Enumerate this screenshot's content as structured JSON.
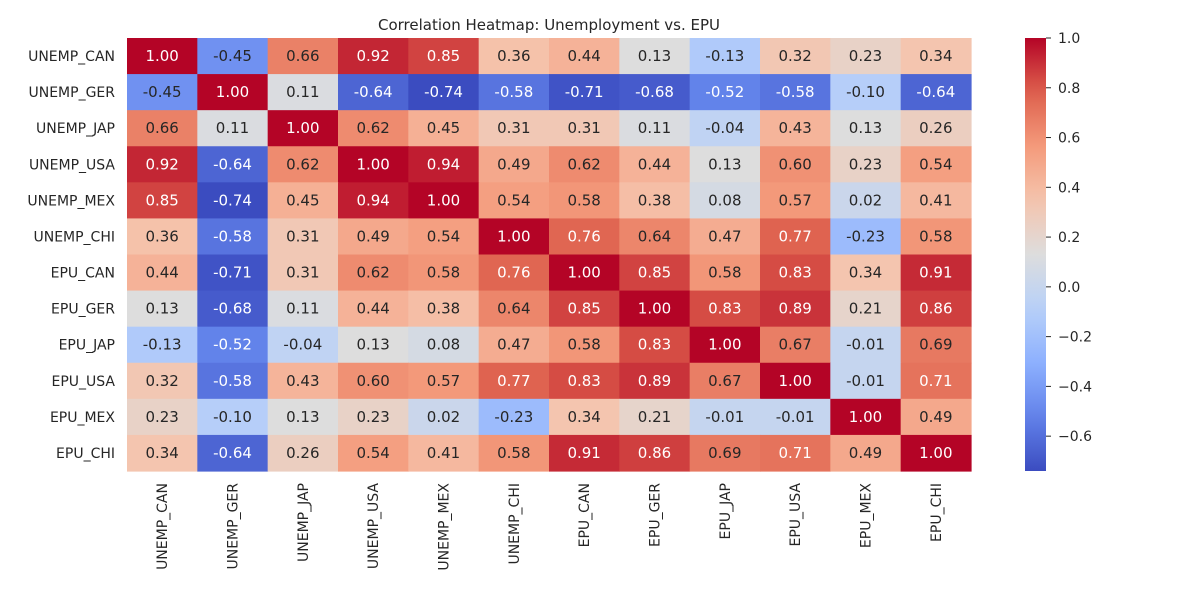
{
  "chart_data": {
    "type": "heatmap",
    "title": "Correlation Heatmap: Unemployment vs. EPU",
    "xlabel": "",
    "ylabel": "",
    "rows": [
      "UNEMP_CAN",
      "UNEMP_GER",
      "UNEMP_JAP",
      "UNEMP_USA",
      "UNEMP_MEX",
      "UNEMP_CHI",
      "EPU_CAN",
      "EPU_GER",
      "EPU_JAP",
      "EPU_USA",
      "EPU_MEX",
      "EPU_CHI"
    ],
    "columns": [
      "UNEMP_CAN",
      "UNEMP_GER",
      "UNEMP_JAP",
      "UNEMP_USA",
      "UNEMP_MEX",
      "UNEMP_CHI",
      "EPU_CAN",
      "EPU_GER",
      "EPU_JAP",
      "EPU_USA",
      "EPU_MEX",
      "EPU_CHI"
    ],
    "values": [
      [
        1.0,
        -0.45,
        0.66,
        0.92,
        0.85,
        0.36,
        0.44,
        0.13,
        -0.13,
        0.32,
        0.23,
        0.34
      ],
      [
        -0.45,
        1.0,
        0.11,
        -0.64,
        -0.74,
        -0.58,
        -0.71,
        -0.68,
        -0.52,
        -0.58,
        -0.1,
        -0.64
      ],
      [
        0.66,
        0.11,
        1.0,
        0.62,
        0.45,
        0.31,
        0.31,
        0.11,
        -0.04,
        0.43,
        0.13,
        0.26
      ],
      [
        0.92,
        -0.64,
        0.62,
        1.0,
        0.94,
        0.49,
        0.62,
        0.44,
        0.13,
        0.6,
        0.23,
        0.54
      ],
      [
        0.85,
        -0.74,
        0.45,
        0.94,
        1.0,
        0.54,
        0.58,
        0.38,
        0.08,
        0.57,
        0.02,
        0.41
      ],
      [
        0.36,
        -0.58,
        0.31,
        0.49,
        0.54,
        1.0,
        0.76,
        0.64,
        0.47,
        0.77,
        -0.23,
        0.58
      ],
      [
        0.44,
        -0.71,
        0.31,
        0.62,
        0.58,
        0.76,
        1.0,
        0.85,
        0.58,
        0.83,
        0.34,
        0.91
      ],
      [
        0.13,
        -0.68,
        0.11,
        0.44,
        0.38,
        0.64,
        0.85,
        1.0,
        0.83,
        0.89,
        0.21,
        0.86
      ],
      [
        -0.13,
        -0.52,
        -0.04,
        0.13,
        0.08,
        0.47,
        0.58,
        0.83,
        1.0,
        0.67,
        -0.01,
        0.69
      ],
      [
        0.32,
        -0.58,
        0.43,
        0.6,
        0.57,
        0.77,
        0.83,
        0.89,
        0.67,
        1.0,
        -0.01,
        0.71
      ],
      [
        0.23,
        -0.1,
        0.13,
        0.23,
        0.02,
        -0.23,
        0.34,
        0.21,
        -0.01,
        -0.01,
        1.0,
        0.49
      ],
      [
        0.34,
        -0.64,
        0.26,
        0.54,
        0.41,
        0.58,
        0.91,
        0.86,
        0.69,
        0.71,
        0.49,
        1.0
      ]
    ],
    "value_format": "2 decimals",
    "colormap": "coolwarm",
    "color_range": [
      -0.74,
      1.0
    ],
    "colorbar": {
      "ticks": [
        1.0,
        0.8,
        0.6,
        0.4,
        0.2,
        0.0,
        -0.2,
        -0.4,
        -0.6
      ],
      "tick_labels": [
        "1.0",
        "0.8",
        "0.6",
        "0.4",
        "0.2",
        "0.0",
        "−0.2",
        "−0.4",
        "−0.6"
      ],
      "placement": "right"
    },
    "grid": false,
    "legend": "none"
  }
}
